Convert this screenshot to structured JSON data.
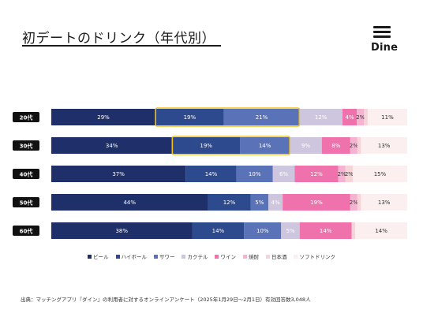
{
  "title": "初デートのドリンク（年代別）",
  "logo": {
    "text": "Dine"
  },
  "source": "出典：マッチングアプリ『ダイン』の利用者に対するオンラインアンケート（2025年1月29日〜2月1日）有効回答数3,048人",
  "chart_data": {
    "type": "bar",
    "orientation": "horizontal",
    "stacked": true,
    "percent": true,
    "categories": [
      "20代",
      "30代",
      "40代",
      "50代",
      "60代"
    ],
    "series": [
      {
        "name": "ビール",
        "color": "#1e2f69",
        "label_color": "#ffffff",
        "values": [
          29,
          34,
          37,
          44,
          38
        ],
        "labels": [
          "29%",
          "34%",
          "37%",
          "44%",
          "38%"
        ]
      },
      {
        "name": "ハイボール",
        "color": "#2e4a8e",
        "label_color": "#ffffff",
        "values": [
          19,
          19,
          14,
          12,
          14
        ],
        "labels": [
          "19%",
          "19%",
          "14%",
          "12%",
          "14%"
        ]
      },
      {
        "name": "サワー",
        "color": "#5a72b8",
        "label_color": "#ffffff",
        "values": [
          21,
          14,
          10,
          5,
          10
        ],
        "labels": [
          "21%",
          "14%",
          "10%",
          "5%",
          "10%"
        ]
      },
      {
        "name": "カクテル",
        "color": "#cdc6de",
        "label_color": "#ffffff",
        "values": [
          12,
          9,
          6,
          4,
          5
        ],
        "labels": [
          "12%",
          "9%",
          "6%",
          "4%",
          "5%"
        ]
      },
      {
        "name": "ワイン",
        "color": "#ef72ac",
        "label_color": "#ffffff",
        "values": [
          4,
          8,
          12,
          19,
          14
        ],
        "labels": [
          "4%",
          "8%",
          "12%",
          "19%",
          "14%"
        ]
      },
      {
        "name": "焼酎",
        "color": "#f5b3d1",
        "label_color": "#333333",
        "values": [
          2,
          2,
          2,
          2,
          0
        ],
        "labels": [
          "2%",
          "2%",
          "2%",
          "2%",
          ""
        ]
      },
      {
        "name": "日本酒",
        "color": "#f7d4d7",
        "label_color": "#333333",
        "values": [
          1,
          1,
          2,
          1,
          1
        ],
        "labels": [
          "",
          "",
          "2%",
          "",
          ""
        ]
      },
      {
        "name": "ソフトドリンク",
        "color": "#fcefef",
        "label_color": "#333333",
        "values": [
          11,
          13,
          15,
          13,
          14
        ],
        "labels": [
          "11%",
          "13%",
          "15%",
          "13%",
          "14%"
        ]
      }
    ],
    "highlight": {
      "color": "#f2c21b",
      "rows": [
        0,
        1
      ],
      "series": [
        1,
        2
      ],
      "series_by_row": [
        [
          1,
          2
        ],
        [
          1,
          2
        ]
      ]
    },
    "category_label_bg": "#111111",
    "category_label_color": "#ffffff",
    "legend": "bottom-center",
    "grid": false
  }
}
